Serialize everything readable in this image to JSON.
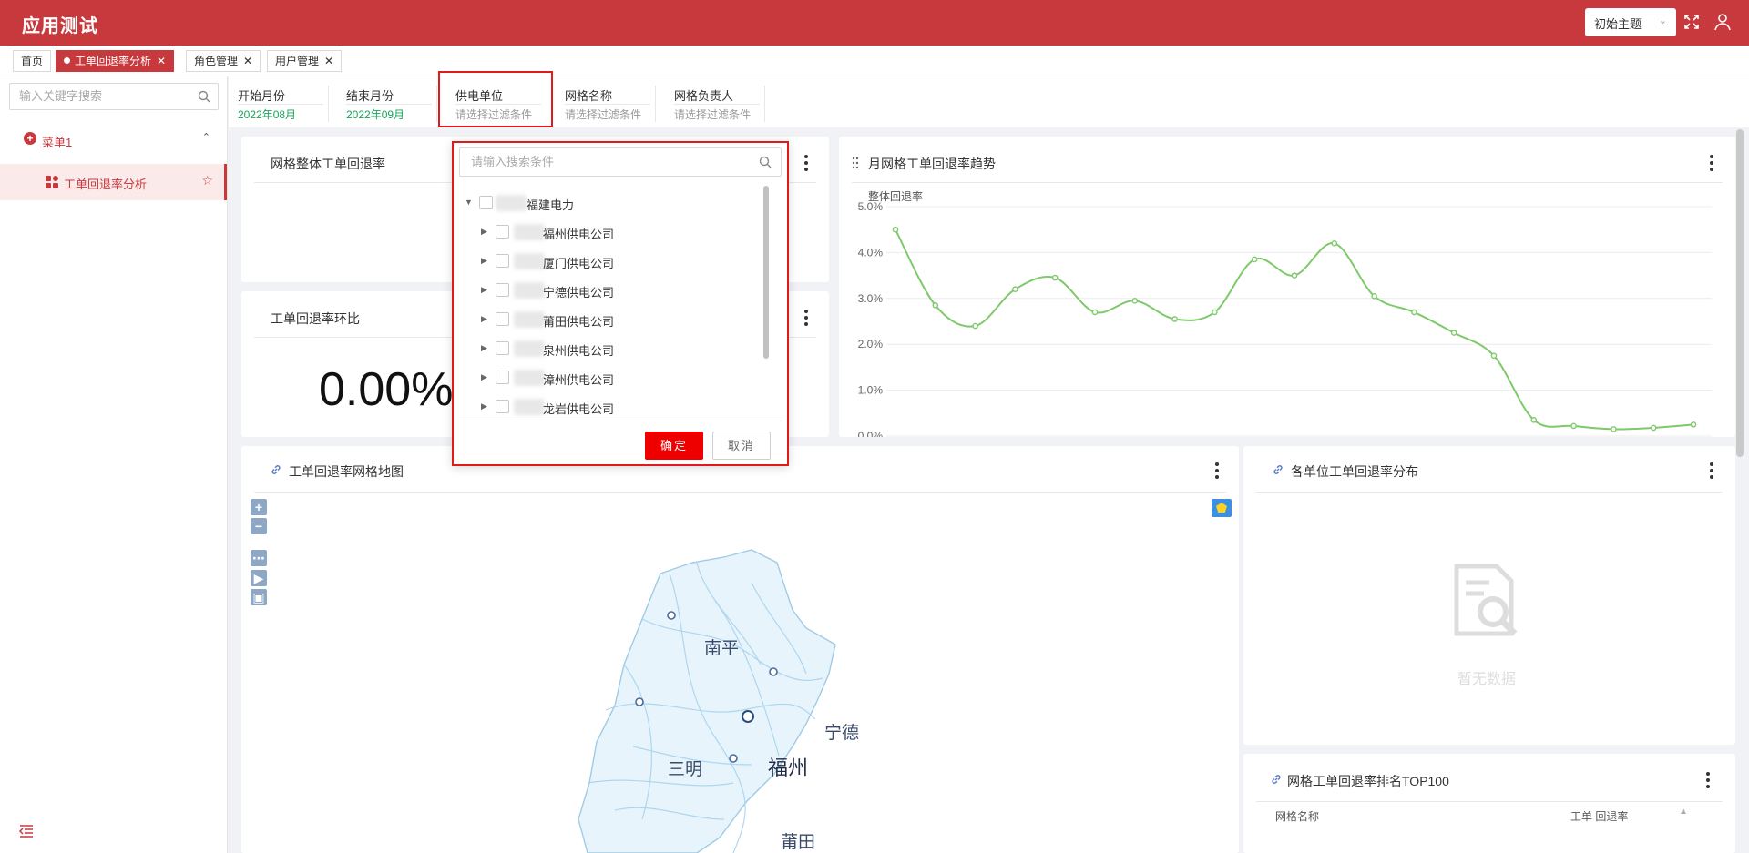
{
  "app": {
    "title": "应用测试",
    "theme_label": "初始主题"
  },
  "tabs": [
    {
      "label": "首页",
      "active": false,
      "closable": false
    },
    {
      "label": "工单回退率分析",
      "active": true,
      "closable": true
    },
    {
      "label": "角色管理",
      "active": false,
      "closable": true
    },
    {
      "label": "用户管理",
      "active": false,
      "closable": true
    }
  ],
  "sidebar": {
    "search_placeholder": "输入关键字搜索",
    "menu_label": "菜单1",
    "sub_label": "工单回退率分析"
  },
  "filters": [
    {
      "label": "开始月份",
      "value": "2022年08月"
    },
    {
      "label": "结束月份",
      "value": "2022年09月"
    },
    {
      "label": "供电单位",
      "value": "请选择过滤条件"
    },
    {
      "label": "网格名称",
      "value": "请选择过滤条件"
    },
    {
      "label": "网格负责人",
      "value": "请选择过滤条件"
    }
  ],
  "cards": {
    "overall": "网格整体工单回退率",
    "ratio": "工单回退率环比",
    "ratio_value": "0.00%",
    "trend": "月网格工单回退率趋势",
    "map": "工单回退率网格地图",
    "distribution": "各单位工单回退率分布",
    "no_data": "暂无数据",
    "top100": "网格工单回退率排名TOP100",
    "col_name": "网格名称",
    "col_rate": "工单 回退率"
  },
  "dropdown": {
    "search_placeholder": "请输入搜索条件",
    "root": "福建电力",
    "children": [
      "福州供电公司",
      "厦门供电公司",
      "宁德供电公司",
      "莆田供电公司",
      "泉州供电公司",
      "漳州供电公司",
      "龙岩供电公司"
    ],
    "ok": "确定",
    "cancel": "取消"
  },
  "map_labels": [
    "南平",
    "宁德",
    "三明",
    "福州",
    "莆田"
  ],
  "chart_data": {
    "type": "line",
    "ylabel": "整体回退率",
    "yticks": [
      "0.0%",
      "1.0%",
      "2.0%",
      "3.0%",
      "4.0%",
      "5.0%"
    ],
    "ylim": [
      0,
      5
    ],
    "values": [
      4.5,
      2.85,
      2.4,
      3.2,
      3.45,
      2.7,
      2.95,
      2.55,
      2.7,
      3.85,
      3.5,
      4.2,
      3.05,
      2.7,
      2.25,
      1.75,
      0.35,
      0.22,
      0.15,
      0.18,
      0.25
    ],
    "colors": {
      "line": "#7ec96a"
    },
    "grid": true,
    "legend": "none"
  },
  "colors": {
    "brand": "#c8393d",
    "accent_green": "#1aa35a",
    "highlight": "#e0191c"
  }
}
